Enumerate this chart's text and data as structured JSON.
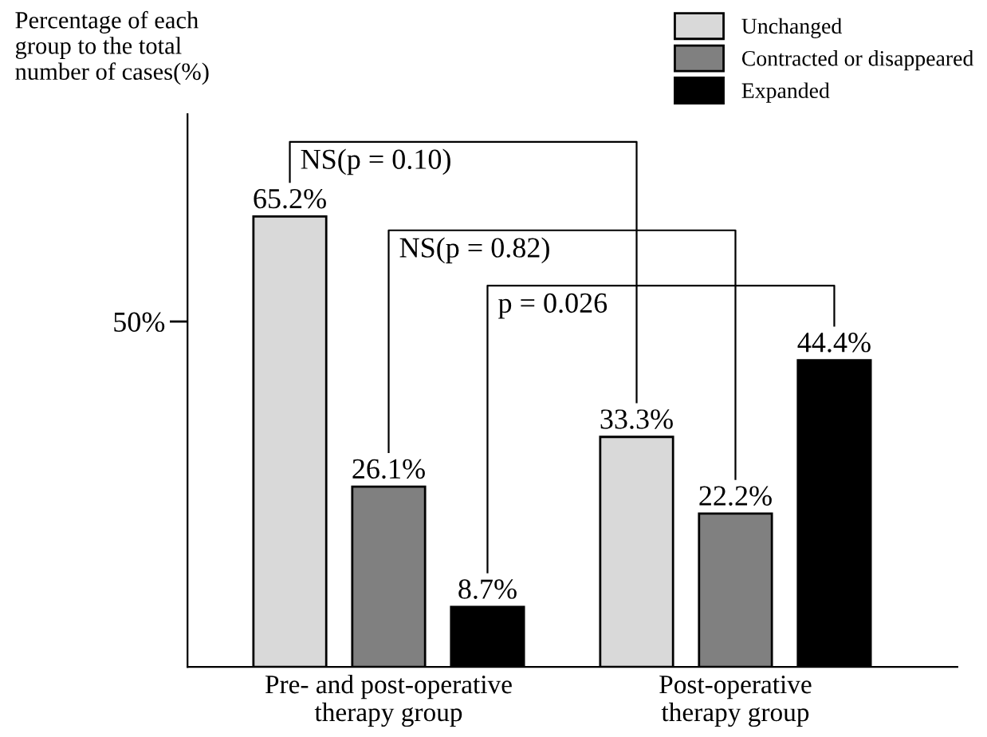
{
  "chart_data": {
    "type": "bar",
    "ylabel": "Percentage of each\ngroup to the total\nnumber of cases(%)",
    "categories": [
      "Pre- and post-operative\ntherapy group",
      "Post-operative\ntherapy group"
    ],
    "series": [
      {
        "name": "Unchanged",
        "color": "#d9d9d9",
        "values": [
          65.2,
          33.3
        ],
        "value_labels": [
          "65.2%",
          "33.3%"
        ]
      },
      {
        "name": "Contracted or disappeared",
        "color": "#808080",
        "values": [
          26.1,
          22.2
        ],
        "value_labels": [
          "26.1%",
          "22.2%"
        ]
      },
      {
        "name": "Expanded",
        "color": "#000000",
        "values": [
          8.7,
          44.4
        ],
        "value_labels": [
          "8.7%",
          "44.4%"
        ]
      }
    ],
    "ylim": [
      0,
      80
    ],
    "yticks": [
      {
        "value": 50,
        "label": "50%"
      }
    ],
    "annotations": [
      "NS(p = 0.10)",
      "NS(p = 0.82)",
      "p = 0.026"
    ],
    "legend": "top right",
    "grid": false
  }
}
